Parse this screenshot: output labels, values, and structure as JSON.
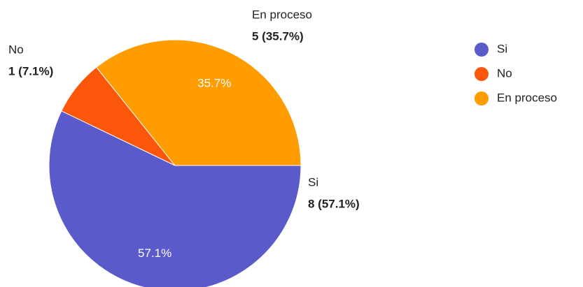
{
  "chart_data": {
    "type": "pie",
    "categories": [
      "Si",
      "No",
      "En proceso"
    ],
    "values": [
      8,
      1,
      5
    ],
    "value_labels": [
      "8 (57.1%)",
      "1 (7.1%)",
      "5 (35.7%)"
    ],
    "inner_labels": [
      "57.1%",
      null,
      "35.7%"
    ],
    "colors": [
      "#5a5acb",
      "#fc560a",
      "#ff9c00"
    ],
    "legend": "right"
  }
}
